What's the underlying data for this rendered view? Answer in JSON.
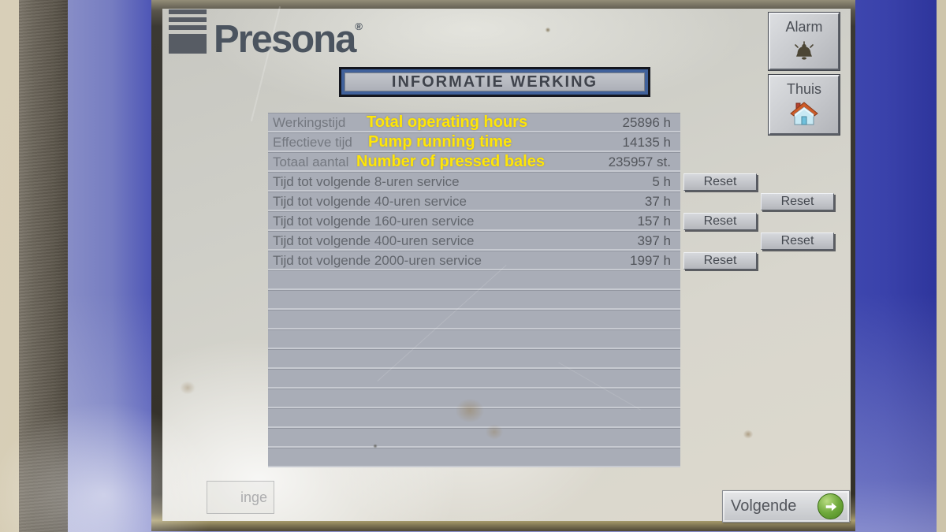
{
  "brand": {
    "name": "Presona",
    "registered_mark": "®"
  },
  "header": {
    "title": "INFORMATIE WERKING",
    "alarm_button": {
      "label": "Alarm",
      "icon": "bell-icon"
    },
    "home_button": {
      "label": "Thuis",
      "icon": "house-icon"
    }
  },
  "table": {
    "reset_label": "Reset",
    "empty_rows": 10,
    "rows": [
      {
        "label": "Werkingstijd",
        "overlay": "Total operating hours",
        "value": "25896 h",
        "reset": ""
      },
      {
        "label": "Effectieve tijd",
        "overlay": "Pump running time",
        "value": "14135 h",
        "reset": ""
      },
      {
        "label": "Totaal aantal",
        "overlay": "Number of pressed bales",
        "value": "235957 st.",
        "reset": ""
      },
      {
        "label": "Tijd tot volgende 8-uren service",
        "overlay": "",
        "value": "5 h",
        "reset": "col1"
      },
      {
        "label": "Tijd tot volgende 40-uren service",
        "overlay": "",
        "value": "37 h",
        "reset": "col2"
      },
      {
        "label": "Tijd tot volgende 160-uren service",
        "overlay": "",
        "value": "157 h",
        "reset": "col1"
      },
      {
        "label": "Tijd tot volgende 400-uren service",
        "overlay": "",
        "value": "397 h",
        "reset": "col2"
      },
      {
        "label": "Tijd tot volgende 2000-uren service",
        "overlay": "",
        "value": "1997 h",
        "reset": "col1"
      }
    ]
  },
  "footer": {
    "previous_button_fragment": "inge",
    "next_button": {
      "label": "Volgende",
      "icon": "arrow-right-icon"
    }
  },
  "colors": {
    "bezel_blue": "#4049b0",
    "screen_gray": "#d2d1c9",
    "table_row_gray": "#a9adb7",
    "annotation_yellow": "#ffe607",
    "arrow_green": "#5d9a2c",
    "housing_beige": "#d3cab1"
  }
}
